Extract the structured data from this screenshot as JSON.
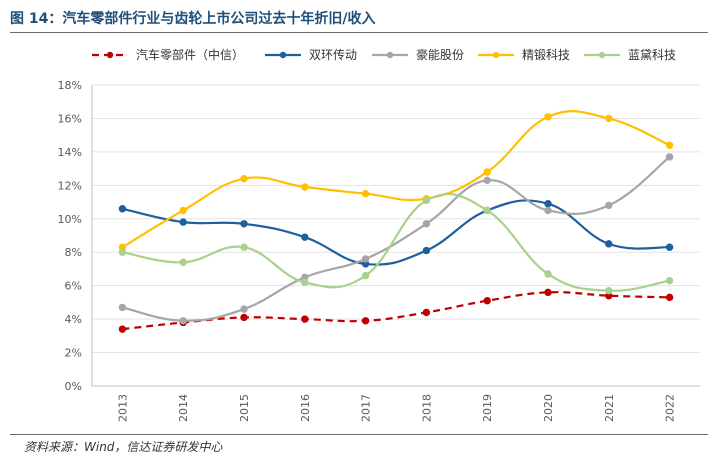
{
  "figure": {
    "title": "图 14：汽车零部件行业与齿轮上市公司过去十年折旧/收入",
    "source": "资料来源：Wind，信达证券研发中心"
  },
  "chart_data": {
    "type": "line",
    "title": "",
    "xlabel": "",
    "ylabel": "",
    "ylim": [
      0,
      18
    ],
    "y_ticks": [
      "0%",
      "2%",
      "4%",
      "6%",
      "8%",
      "10%",
      "12%",
      "14%",
      "16%",
      "18%"
    ],
    "y_unit": "%",
    "categories": [
      "2013",
      "2014",
      "2015",
      "2016",
      "2017",
      "2018",
      "2019",
      "2020",
      "2021",
      "2022"
    ],
    "legend_position": "top",
    "grid": "horizontal",
    "series": [
      {
        "name": "汽车零部件（中信）",
        "color": "#c00000",
        "dashed": true,
        "values": [
          3.4,
          3.8,
          4.1,
          4.0,
          3.9,
          4.4,
          5.1,
          5.6,
          5.4,
          5.3
        ]
      },
      {
        "name": "双环传动",
        "color": "#1f5f9e",
        "dashed": false,
        "values": [
          10.6,
          9.8,
          9.7,
          8.9,
          7.3,
          8.1,
          10.5,
          10.9,
          8.5,
          8.3
        ]
      },
      {
        "name": "豪能股份",
        "color": "#a6a6a6",
        "dashed": false,
        "values": [
          4.7,
          3.9,
          4.6,
          6.5,
          7.6,
          9.7,
          12.3,
          10.5,
          10.8,
          13.7
        ]
      },
      {
        "name": "精锻科技",
        "color": "#ffc000",
        "dashed": false,
        "values": [
          8.3,
          10.5,
          12.4,
          11.9,
          11.5,
          11.2,
          12.8,
          16.1,
          16.0,
          14.4
        ]
      },
      {
        "name": "蓝黛科技",
        "color": "#a9d18e",
        "dashed": false,
        "values": [
          8.0,
          7.4,
          8.3,
          6.2,
          6.6,
          11.1,
          10.5,
          6.7,
          5.7,
          6.3
        ]
      }
    ]
  }
}
